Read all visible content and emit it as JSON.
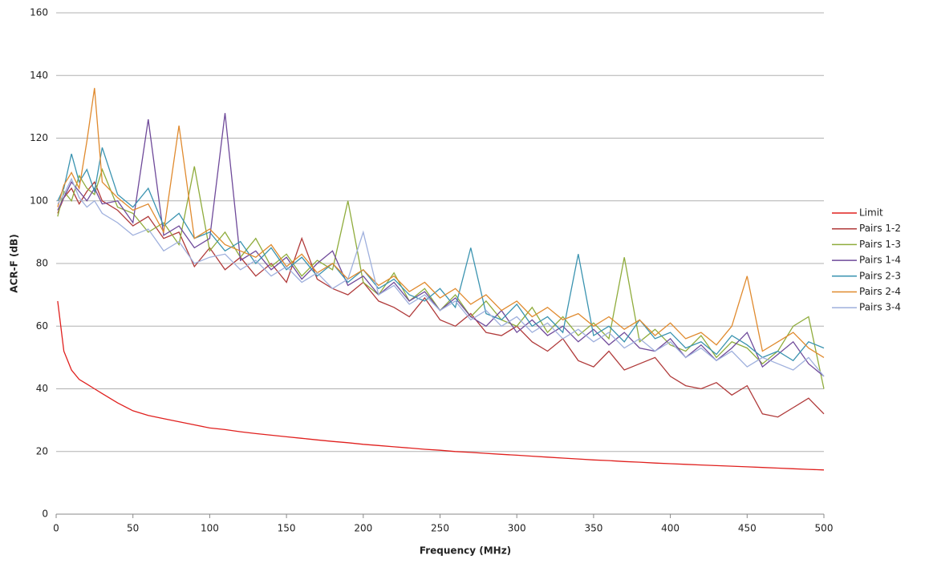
{
  "chart_data": {
    "type": "line",
    "x_label": "Frequency (MHz)",
    "y_label": "ACR-F (dB)",
    "x": [
      1,
      5,
      10,
      15,
      20,
      25,
      30,
      40,
      50,
      60,
      70,
      80,
      90,
      100,
      110,
      120,
      130,
      140,
      150,
      160,
      170,
      180,
      190,
      200,
      210,
      220,
      230,
      240,
      250,
      260,
      270,
      280,
      290,
      300,
      310,
      320,
      330,
      340,
      350,
      360,
      370,
      380,
      390,
      400,
      410,
      420,
      430,
      440,
      450,
      460,
      470,
      480,
      490,
      500
    ],
    "series": [
      {
        "name": "Limit",
        "color": "#e0201e",
        "values": [
          68,
          52,
          46,
          43,
          41.5,
          40,
          38.5,
          35.5,
          33,
          31.5,
          30.5,
          29.5,
          28.5,
          27.5,
          27,
          26.3,
          25.7,
          25.2,
          24.7,
          24.2,
          23.7,
          23.2,
          22.8,
          22.3,
          21.9,
          21.5,
          21.1,
          20.7,
          20.4,
          20,
          19.7,
          19.4,
          19.1,
          18.8,
          18.5,
          18.2,
          17.9,
          17.6,
          17.3,
          17.1,
          16.8,
          16.6,
          16.3,
          16.1,
          15.9,
          15.7,
          15.5,
          15.3,
          15.1,
          14.9,
          14.7,
          14.5,
          14.3,
          14.1
        ]
      },
      {
        "name": "Pairs 1-2",
        "color": "#b03a3a",
        "values": [
          96,
          101,
          104,
          99,
          103,
          106,
          100,
          97,
          92,
          95,
          88,
          90,
          79,
          85,
          78,
          82,
          76,
          80,
          74,
          88,
          75,
          72,
          70,
          74,
          68,
          66,
          63,
          69,
          62,
          60,
          64,
          58,
          57,
          60,
          55,
          52,
          56,
          49,
          47,
          52,
          46,
          48,
          50,
          44,
          41,
          40,
          42,
          38,
          41,
          32,
          31,
          34,
          37,
          32
        ]
      },
      {
        "name": "Pairs 1-3",
        "color": "#8fac3c",
        "values": [
          95,
          103,
          100,
          108,
          104,
          102,
          110,
          98,
          96,
          90,
          93,
          86,
          111,
          84,
          90,
          82,
          88,
          79,
          83,
          76,
          81,
          78,
          100,
          74,
          70,
          77,
          68,
          72,
          65,
          70,
          63,
          68,
          62,
          60,
          66,
          58,
          63,
          57,
          61,
          56,
          82,
          55,
          59,
          54,
          52,
          57,
          50,
          55,
          53,
          48,
          52,
          60,
          63,
          40
        ]
      },
      {
        "name": "Pairs 1-4",
        "color": "#6f4a9a",
        "values": [
          97,
          101,
          106,
          103,
          100,
          104,
          99,
          100,
          93,
          126,
          89,
          92,
          85,
          88,
          128,
          81,
          84,
          78,
          82,
          75,
          80,
          84,
          73,
          76,
          70,
          74,
          68,
          71,
          65,
          69,
          63,
          60,
          65,
          58,
          62,
          57,
          60,
          55,
          59,
          54,
          58,
          53,
          52,
          56,
          50,
          54,
          49,
          53,
          58,
          47,
          51,
          55,
          48,
          44
        ]
      },
      {
        "name": "Pairs 2-3",
        "color": "#3a93b0",
        "values": [
          100,
          104,
          115,
          106,
          110,
          103,
          117,
          102,
          98,
          104,
          92,
          96,
          88,
          90,
          84,
          87,
          80,
          85,
          78,
          82,
          76,
          80,
          74,
          78,
          72,
          75,
          70,
          68,
          72,
          66,
          85,
          64,
          62,
          67,
          60,
          63,
          58,
          83,
          57,
          60,
          55,
          62,
          56,
          58,
          53,
          55,
          51,
          57,
          54,
          50,
          52,
          49,
          55,
          53
        ]
      },
      {
        "name": "Pairs 2-4",
        "color": "#e08a2e",
        "values": [
          98,
          105,
          109,
          104,
          119,
          136,
          106,
          101,
          97,
          99,
          90,
          124,
          88,
          91,
          86,
          84,
          82,
          86,
          79,
          83,
          77,
          80,
          75,
          78,
          73,
          76,
          71,
          74,
          69,
          72,
          67,
          70,
          65,
          68,
          63,
          66,
          62,
          64,
          60,
          63,
          59,
          62,
          57,
          61,
          56,
          58,
          54,
          60,
          76,
          52,
          55,
          58,
          53,
          50
        ]
      },
      {
        "name": "Pairs 3-4",
        "color": "#9fb0dd",
        "values": [
          99,
          102,
          107,
          101,
          98,
          100,
          96,
          93,
          89,
          91,
          84,
          87,
          80,
          82,
          83,
          78,
          81,
          76,
          79,
          74,
          77,
          72,
          75,
          90,
          70,
          73,
          67,
          70,
          65,
          68,
          62,
          65,
          60,
          63,
          58,
          61,
          56,
          59,
          55,
          58,
          53,
          56,
          52,
          55,
          50,
          53,
          49,
          52,
          47,
          50,
          48,
          46,
          50,
          44
        ]
      }
    ],
    "xlim": [
      0,
      500
    ],
    "xticks": [
      0,
      50,
      100,
      150,
      200,
      250,
      300,
      350,
      400,
      450,
      500
    ],
    "ylim": [
      0,
      160
    ],
    "yticks": [
      0,
      20,
      40,
      60,
      80,
      100,
      120,
      140,
      160
    ],
    "grid": true,
    "legend": "right"
  }
}
